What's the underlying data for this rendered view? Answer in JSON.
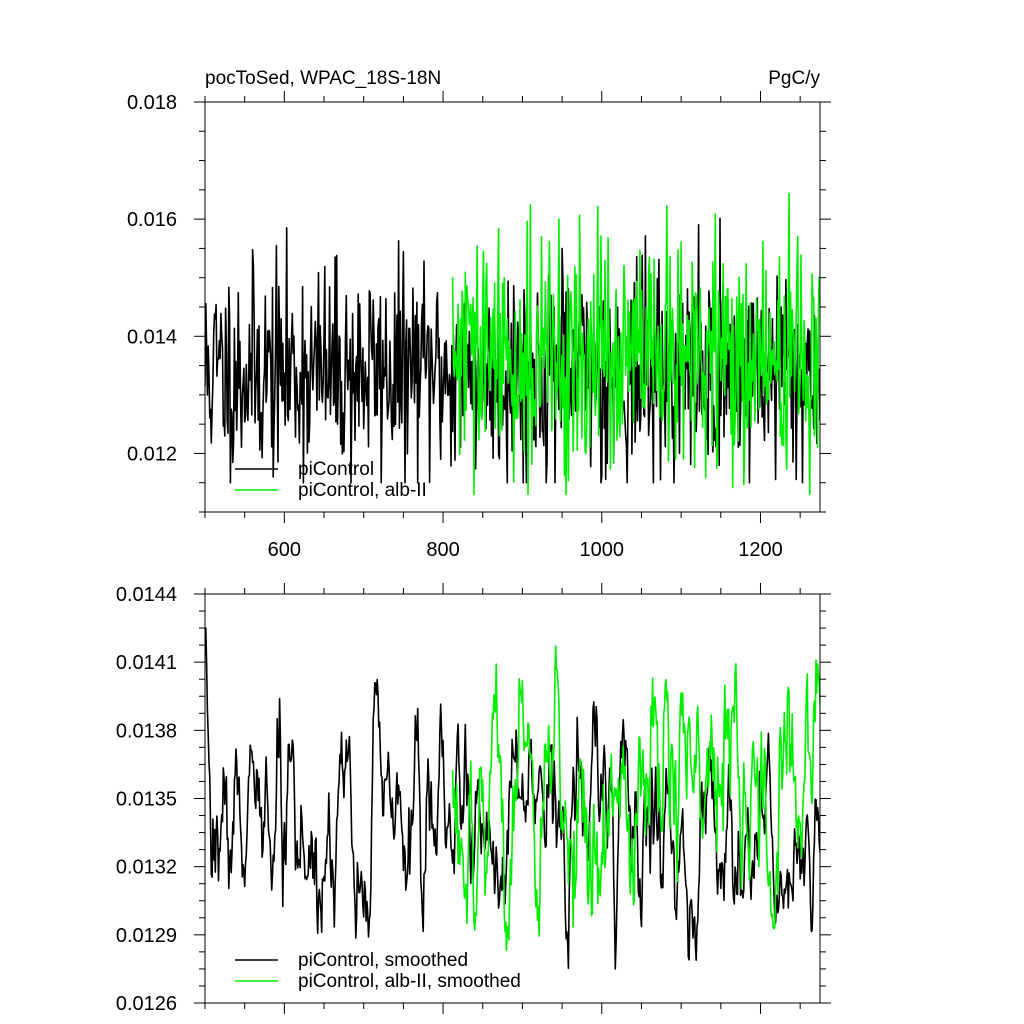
{
  "colors": {
    "series_black": "#000000",
    "series_green": "#00ee00",
    "axis": "#000000",
    "background": "#ffffff"
  },
  "chart_data": [
    {
      "type": "line",
      "title": "pocToSed, WPAC_18S-18N",
      "units": "PgC/y",
      "xlabel": "",
      "ylabel": "",
      "xlim": [
        500,
        1275
      ],
      "ylim": [
        0.011,
        0.018
      ],
      "xticks": [
        600,
        800,
        1000,
        1200
      ],
      "xtick_labels": [
        "600",
        "800",
        "1000",
        "1200"
      ],
      "yticks": [
        0.012,
        0.014,
        0.016,
        0.018
      ],
      "ytick_labels": [
        "0.012",
        "0.014",
        "0.016",
        "0.018"
      ],
      "show_x_tick_labels": true,
      "grid": false,
      "legend_position": "bottom-left",
      "series": [
        {
          "name": "piControl",
          "color": "#000000",
          "x_start": 500,
          "x_end": 1275,
          "mean": 0.0134,
          "std": 0.0009,
          "min": 0.0115,
          "max": 0.0166,
          "seed": 11,
          "smooth": 1
        },
        {
          "name": "piControl, alb-II",
          "color": "#00ee00",
          "x_start": 812,
          "x_end": 1275,
          "mean": 0.0136,
          "std": 0.001,
          "min": 0.0113,
          "max": 0.0172,
          "seed": 29,
          "smooth": 1
        }
      ]
    },
    {
      "type": "line",
      "title": "",
      "units": "",
      "xlabel": "",
      "ylabel": "",
      "xlim": [
        500,
        1275
      ],
      "ylim": [
        0.0126,
        0.0144
      ],
      "xticks": [
        600,
        800,
        1000,
        1200
      ],
      "xtick_labels": [],
      "yticks": [
        0.0126,
        0.0129,
        0.0132,
        0.0135,
        0.0138,
        0.0141,
        0.0144
      ],
      "ytick_labels": [
        "0.0126",
        "0.0129",
        "0.0132",
        "0.0135",
        "0.0138",
        "0.0141",
        "0.0144"
      ],
      "show_x_tick_labels": false,
      "grid": false,
      "legend_position": "bottom-left",
      "series": [
        {
          "name": "piControl, smoothed",
          "color": "#000000",
          "x_start": 500,
          "x_end": 1275,
          "mean": 0.01338,
          "std": 0.00024,
          "min": 0.01275,
          "max": 0.01425,
          "seed": 7,
          "smooth": 3
        },
        {
          "name": "piControl, alb-II, smoothed",
          "color": "#00ee00",
          "x_start": 812,
          "x_end": 1275,
          "mean": 0.01352,
          "std": 0.00028,
          "min": 0.01263,
          "max": 0.01437,
          "seed": 53,
          "smooth": 3
        }
      ]
    }
  ]
}
